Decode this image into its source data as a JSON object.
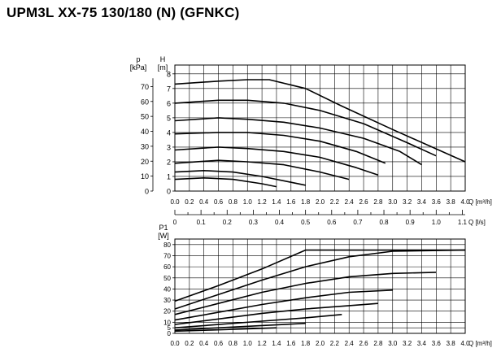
{
  "title": "UPM3L XX-75 130/180 (N) (GFNKC)",
  "colors": {
    "grid": "#000000",
    "curve": "#000000",
    "background": "#ffffff"
  },
  "chart_data": [
    {
      "type": "line",
      "name_unit_left": "p",
      "name_unit_left2": "[kPa]",
      "name_unit_right": "H",
      "name_unit_right2": "[m]",
      "xlabel": "Q [m³/h]",
      "xlabel_secondary": "Q [l/s]",
      "xlim": [
        0,
        4.0
      ],
      "ylim_m": [
        0,
        8
      ],
      "ylim_kpa": [
        0,
        80
      ],
      "x_ticks": [
        "0.0",
        "0.2",
        "0.4",
        "0.6",
        "0.8",
        "1.0",
        "1.2",
        "1.4",
        "1.6",
        "1.8",
        "2.0",
        "2.2",
        "2.4",
        "2.6",
        "2.8",
        "3.0",
        "3.2",
        "3.4",
        "3.6",
        "3.8",
        "4.0"
      ],
      "x_ticks_ls": [
        "0",
        "0.1",
        "0.2",
        "0.3",
        "0.4",
        "0.5",
        "0.6",
        "0.7",
        "0.8",
        "0.9",
        "1.0",
        "1.1"
      ],
      "y_ticks_m": [
        "0",
        "1",
        "2",
        "3",
        "4",
        "5",
        "6",
        "7",
        "8"
      ],
      "y_ticks_kpa": [
        "0",
        "10",
        "20",
        "30",
        "40",
        "50",
        "60",
        "70"
      ],
      "grid": true,
      "series": [
        {
          "x": [
            0,
            0.6,
            1.0,
            1.3,
            1.8,
            2.3,
            3.0,
            4.0
          ],
          "y": [
            7.3,
            7.5,
            7.6,
            7.6,
            7.0,
            5.8,
            4.2,
            2.0
          ]
        },
        {
          "x": [
            0,
            0.6,
            1.0,
            1.5,
            2.0,
            2.6,
            3.2,
            3.6
          ],
          "y": [
            6.0,
            6.2,
            6.2,
            6.0,
            5.5,
            4.6,
            3.3,
            2.4
          ]
        },
        {
          "x": [
            0,
            0.6,
            1.0,
            1.5,
            2.0,
            2.6,
            3.1,
            3.4
          ],
          "y": [
            4.8,
            5.0,
            4.9,
            4.7,
            4.3,
            3.6,
            2.7,
            1.8
          ]
        },
        {
          "x": [
            0,
            0.6,
            1.0,
            1.5,
            2.0,
            2.5,
            2.9
          ],
          "y": [
            3.9,
            4.0,
            4.0,
            3.8,
            3.4,
            2.7,
            1.9
          ]
        },
        {
          "x": [
            0,
            0.6,
            1.0,
            1.5,
            2.0,
            2.5,
            2.8
          ],
          "y": [
            2.8,
            3.0,
            2.9,
            2.7,
            2.3,
            1.6,
            1.1
          ]
        },
        {
          "x": [
            0,
            0.6,
            1.0,
            1.5,
            2.0,
            2.4
          ],
          "y": [
            1.9,
            2.1,
            2.0,
            1.8,
            1.3,
            0.8
          ]
        },
        {
          "x": [
            0,
            0.4,
            0.8,
            1.2,
            1.6,
            1.8
          ],
          "y": [
            1.3,
            1.4,
            1.3,
            1.0,
            0.6,
            0.4
          ]
        },
        {
          "x": [
            0,
            0.4,
            0.8,
            1.2,
            1.4
          ],
          "y": [
            0.8,
            0.9,
            0.8,
            0.5,
            0.3
          ]
        }
      ]
    },
    {
      "type": "line",
      "name_unit_left": "P1",
      "name_unit_left2": "[W]",
      "xlabel": "Q [m³/h]",
      "xlim": [
        0,
        4.0
      ],
      "ylim": [
        0,
        85
      ],
      "x_ticks": [
        "0.0",
        "0.2",
        "0.4",
        "0.6",
        "0.8",
        "1.0",
        "1.2",
        "1.4",
        "1.6",
        "1.8",
        "2.0",
        "2.2",
        "2.4",
        "2.6",
        "2.8",
        "3.0",
        "3.2",
        "3.4",
        "3.6",
        "3.8",
        "4.0"
      ],
      "y_ticks": [
        "0",
        "5",
        "10",
        "20",
        "30",
        "40",
        "50",
        "60",
        "70",
        "80"
      ],
      "grid": true,
      "series": [
        {
          "x": [
            0,
            0.6,
            1.2,
            1.8,
            3.0,
            4.0
          ],
          "y": [
            29,
            43,
            58,
            75,
            75,
            75
          ]
        },
        {
          "x": [
            0,
            0.6,
            1.2,
            1.8,
            2.4,
            3.0,
            4.0
          ],
          "y": [
            22,
            35,
            48,
            60,
            69,
            74,
            75
          ]
        },
        {
          "x": [
            0,
            0.6,
            1.2,
            1.8,
            2.4,
            3.0,
            3.6
          ],
          "y": [
            17,
            27,
            37,
            45,
            51,
            54,
            55
          ]
        },
        {
          "x": [
            0,
            0.6,
            1.2,
            1.8,
            2.4,
            3.0
          ],
          "y": [
            12,
            19,
            26,
            32,
            37,
            39
          ]
        },
        {
          "x": [
            0,
            0.6,
            1.2,
            1.8,
            2.4,
            2.8
          ],
          "y": [
            8,
            13,
            18,
            22,
            25,
            27
          ]
        },
        {
          "x": [
            0,
            0.6,
            1.2,
            1.8,
            2.3
          ],
          "y": [
            5,
            8,
            11,
            14,
            17
          ]
        },
        {
          "x": [
            0,
            0.6,
            1.2,
            1.8
          ],
          "y": [
            3,
            5,
            7,
            9
          ]
        },
        {
          "x": [
            0,
            0.5,
            1.0,
            1.4
          ],
          "y": [
            2,
            3,
            4,
            5
          ]
        }
      ]
    }
  ]
}
